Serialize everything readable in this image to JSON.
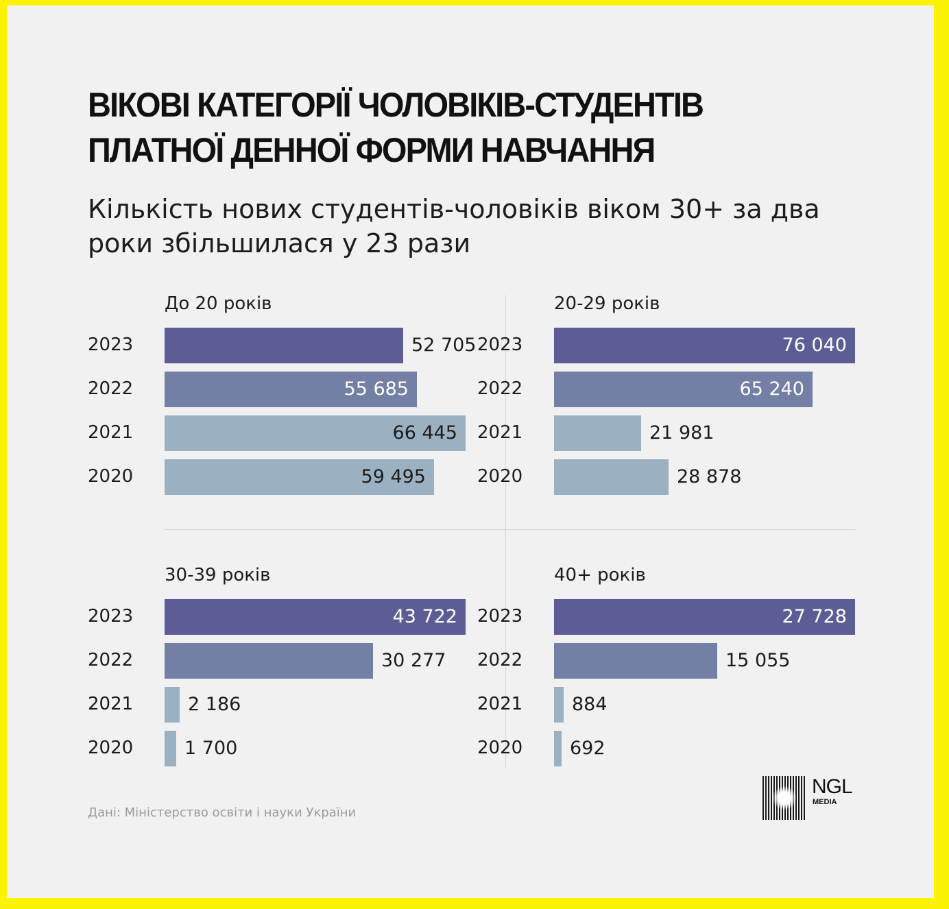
{
  "title": "ВІКОВІ КАТЕГОРІЇ ЧОЛОВІКІВ-СТУДЕНТІВ ПЛАТНОЇ ДЕННОЇ ФОРМИ НАВЧАННЯ",
  "subtitle": "Кількість нових студентів-чоловіків віком 30+ за два роки збільшилася у 23 рази",
  "source": "Дані: Міністерство освіти і науки України",
  "logo": {
    "name": "NGL",
    "sub": "MEDIA"
  },
  "colors": {
    "background": "#fbf204",
    "panel": "#f1f1f2",
    "y2023": "#5d5d96",
    "y2022": "#737fa4",
    "y2021": "#9bb1c2",
    "y2020": "#9bb1c2",
    "label_inside_light": "#ffffff",
    "label_dark": "#1c1c1c"
  },
  "chart_data": [
    {
      "type": "bar",
      "title": "До 20 років",
      "categories": [
        "2023",
        "2022",
        "2021",
        "2020"
      ],
      "values": [
        52705,
        55685,
        66445,
        59495
      ],
      "labels": [
        "52 705",
        "55 685",
        "66 445",
        "59 495"
      ]
    },
    {
      "type": "bar",
      "title": "20-29 років",
      "categories": [
        "2023",
        "2022",
        "2021",
        "2020"
      ],
      "values": [
        76040,
        65240,
        21981,
        28878
      ],
      "labels": [
        "76 040",
        "65 240",
        "21 981",
        "28 878"
      ]
    },
    {
      "type": "bar",
      "title": "30-39 років",
      "categories": [
        "2023",
        "2022",
        "2021",
        "2020"
      ],
      "values": [
        43722,
        30277,
        2186,
        1700
      ],
      "labels": [
        "43 722",
        "30 277",
        "2 186",
        "1 700"
      ]
    },
    {
      "type": "bar",
      "title": "40+ років",
      "categories": [
        "2023",
        "2022",
        "2021",
        "2020"
      ],
      "values": [
        27728,
        15055,
        884,
        692
      ],
      "labels": [
        "27 728",
        "15 055",
        "884",
        "692"
      ]
    }
  ]
}
